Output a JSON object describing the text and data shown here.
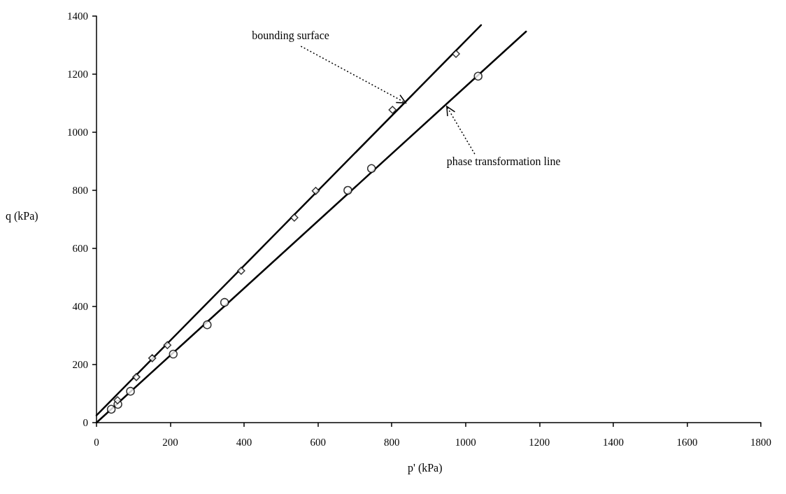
{
  "chart_data": {
    "type": "scatter",
    "xlabel": "p' (kPa)",
    "ylabel": "q (kPa)",
    "xlim": [
      0,
      1800
    ],
    "xticks": [
      0,
      200,
      400,
      600,
      800,
      1000,
      1200,
      1400,
      1600,
      1800
    ],
    "ylim": [
      0,
      1400
    ],
    "yticks": [
      0,
      200,
      400,
      600,
      800,
      1000,
      1200,
      1400
    ],
    "grid": false,
    "series": [
      {
        "marker": "diamond",
        "color": "#000000",
        "x": [
          57,
          108,
          151,
          192,
          392,
          536,
          594,
          802,
          974
        ],
        "values": [
          77,
          157,
          222,
          267,
          523,
          706,
          798,
          1077,
          1270
        ]
      },
      {
        "marker": "circle",
        "color": "#000000",
        "x": [
          40,
          58,
          92,
          208,
          300,
          347,
          681,
          745,
          1034
        ],
        "values": [
          46,
          63,
          108,
          236,
          337,
          414,
          800,
          875,
          1193
        ]
      },
      {
        "type": "line",
        "marker": "none",
        "line_style": "solid",
        "color": "#000000",
        "x": [
          0,
          1042
        ],
        "values": [
          25,
          1369
        ]
      },
      {
        "type": "line",
        "marker": "none",
        "line_style": "solid",
        "color": "#000000",
        "x": [
          0,
          1164
        ],
        "values": [
          0,
          1347
        ]
      }
    ],
    "annotations": [
      {
        "text": "bounding surface",
        "x": 838,
        "y": 1101
      },
      {
        "text": "phase transformation line",
        "x": 949,
        "y": 1089
      }
    ]
  }
}
